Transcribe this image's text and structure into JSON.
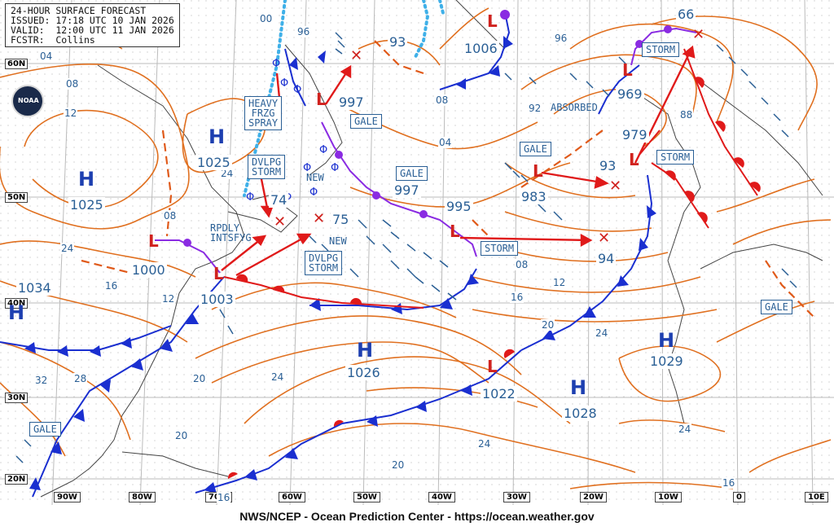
{
  "header": {
    "line1": "24-HOUR SURFACE FORECAST",
    "line2": "ISSUED: 17:18 UTC 10 JAN 2026",
    "line3": "VALID:  12:00 UTC 11 JAN 2026",
    "line4": "FCSTR:  Collins"
  },
  "footer": "NWS/NCEP - Ocean Prediction Center - https://ocean.weather.gov",
  "logo_text": "NOAA",
  "latitude_labels": [
    "60N",
    "50N",
    "40N",
    "30N",
    "20N"
  ],
  "longitude_labels": [
    "90W",
    "80W",
    "70W",
    "60W",
    "50W",
    "40W",
    "30W",
    "20W",
    "10W",
    "0",
    "10E"
  ],
  "high_centers": [
    {
      "symbol": "H",
      "pressure": "1025"
    },
    {
      "symbol": "H",
      "pressure": "1025"
    },
    {
      "symbol": "H",
      "pressure": "1034"
    },
    {
      "symbol": "H",
      "pressure": "1026"
    },
    {
      "symbol": "H",
      "pressure": "1028"
    },
    {
      "symbol": "H",
      "pressure": "1029"
    }
  ],
  "low_centers": [
    {
      "symbol": "L",
      "pressure": "1000"
    },
    {
      "symbol": "L",
      "pressure": "1003"
    },
    {
      "symbol": "L",
      "pressure": "997"
    },
    {
      "symbol": "L",
      "pressure": "995"
    },
    {
      "symbol": "L",
      "pressure": "1022"
    },
    {
      "symbol": "L",
      "pressure": "983"
    },
    {
      "symbol": "L",
      "pressure": "979"
    },
    {
      "symbol": "L",
      "pressure": "969"
    },
    {
      "symbol": "L",
      "pressure": "1006"
    }
  ],
  "forecast_positions": [
    "74",
    "75",
    "93",
    "94",
    "93",
    "66",
    "997"
  ],
  "labels": {
    "heavy_frzg_spray": "HEAVY\nFRZG\nSPRAY",
    "dvlpg_storm_1": "DVLPG\nSTORM",
    "dvlpg_storm_2": "DVLPG\nSTORM",
    "rpdly_intsfyg": "RPDLY\nINTSFYG",
    "new_1": "NEW",
    "new_2": "NEW",
    "gale_1": "GALE",
    "gale_2": "GALE",
    "gale_3": "GALE",
    "gale_4": "GALE",
    "gale_5": "GALE",
    "storm_1": "STORM",
    "storm_2": "STORM",
    "storm_3": "STORM",
    "absorbed": "ABSORBED"
  },
  "isobar_labels": [
    "00",
    "96",
    "04",
    "08",
    "12",
    "12",
    "16",
    "24",
    "24",
    "20",
    "28",
    "32",
    "24",
    "20",
    "20",
    "24",
    "16",
    "16",
    "20",
    "24",
    "24",
    "12",
    "08",
    "04",
    "08",
    "88",
    "92",
    "96",
    "08",
    "16"
  ],
  "colors": {
    "isobar": "#e07020",
    "cold_front": "#1a2fd0",
    "warm_front": "#e01a1a",
    "occluded_front": "#8a2be2",
    "ice_edge": "#3fb0e8",
    "label_blue": "#2a5f95",
    "grid": "#999999"
  }
}
